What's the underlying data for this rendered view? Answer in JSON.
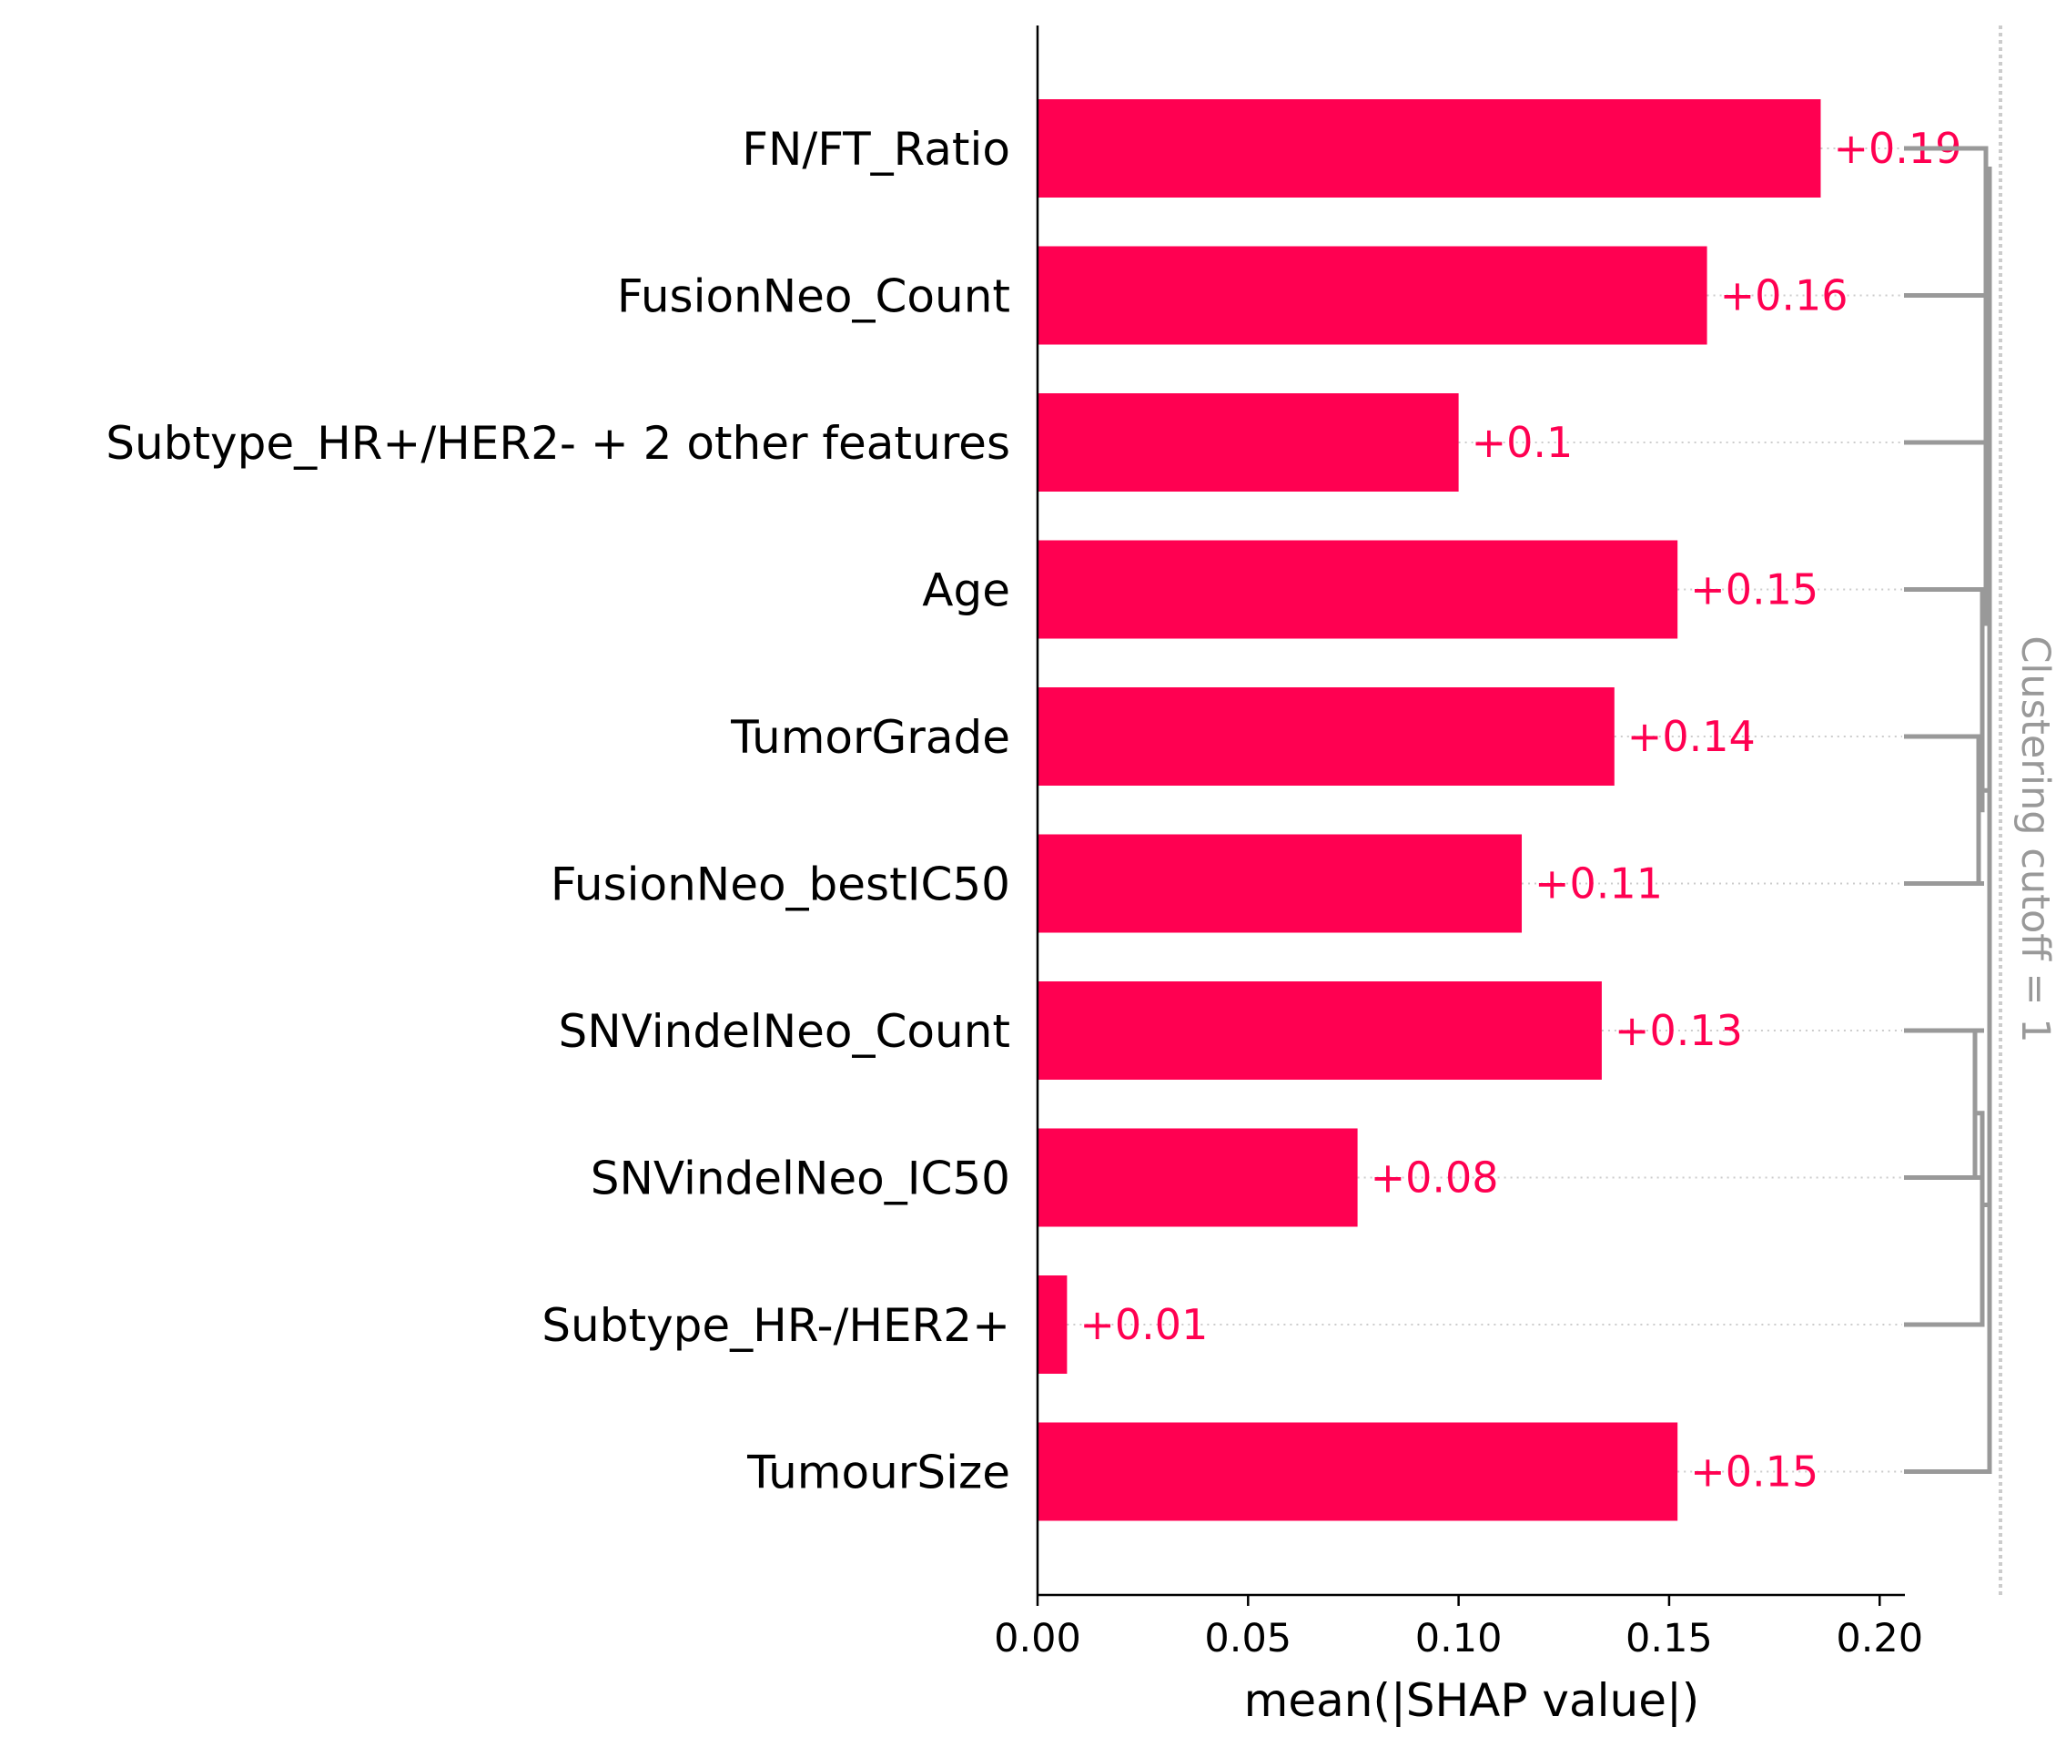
{
  "chart_data": {
    "type": "bar",
    "orientation": "horizontal",
    "categories": [
      "FN/FT_Ratio",
      "FusionNeo_Count",
      "Subtype_HR+/HER2- + 2 other features",
      "Age",
      "TumorGrade",
      "FusionNeo_bestIC50",
      "SNVindelNeo_Count",
      "SNVindelNeo_IC50",
      "Subtype_HR-/HER2+",
      "TumourSize"
    ],
    "values": [
      0.186,
      0.159,
      0.1,
      0.152,
      0.137,
      0.115,
      0.134,
      0.076,
      0.007,
      0.152
    ],
    "value_labels": [
      "+0.19",
      "+0.16",
      "+0.1",
      "+0.15",
      "+0.14",
      "+0.11",
      "+0.13",
      "+0.08",
      "+0.01",
      "+0.15"
    ],
    "xlabel": "mean(|SHAP value|)",
    "ylabel": "",
    "title": "",
    "xlim": [
      0,
      0.206
    ],
    "xticks": [
      0.0,
      0.05,
      0.1,
      0.15,
      0.2
    ],
    "xtick_labels": [
      "0.00",
      "0.05",
      "0.10",
      "0.15",
      "0.20"
    ],
    "clustering_label": "Clustering cutoff = 1",
    "grid": false,
    "legend": "none",
    "colors": {
      "bar": "#ff0051",
      "value_text": "#ff0051",
      "dendrogram": "#999999",
      "guide": "#cccccc",
      "axis": "#000000"
    }
  }
}
